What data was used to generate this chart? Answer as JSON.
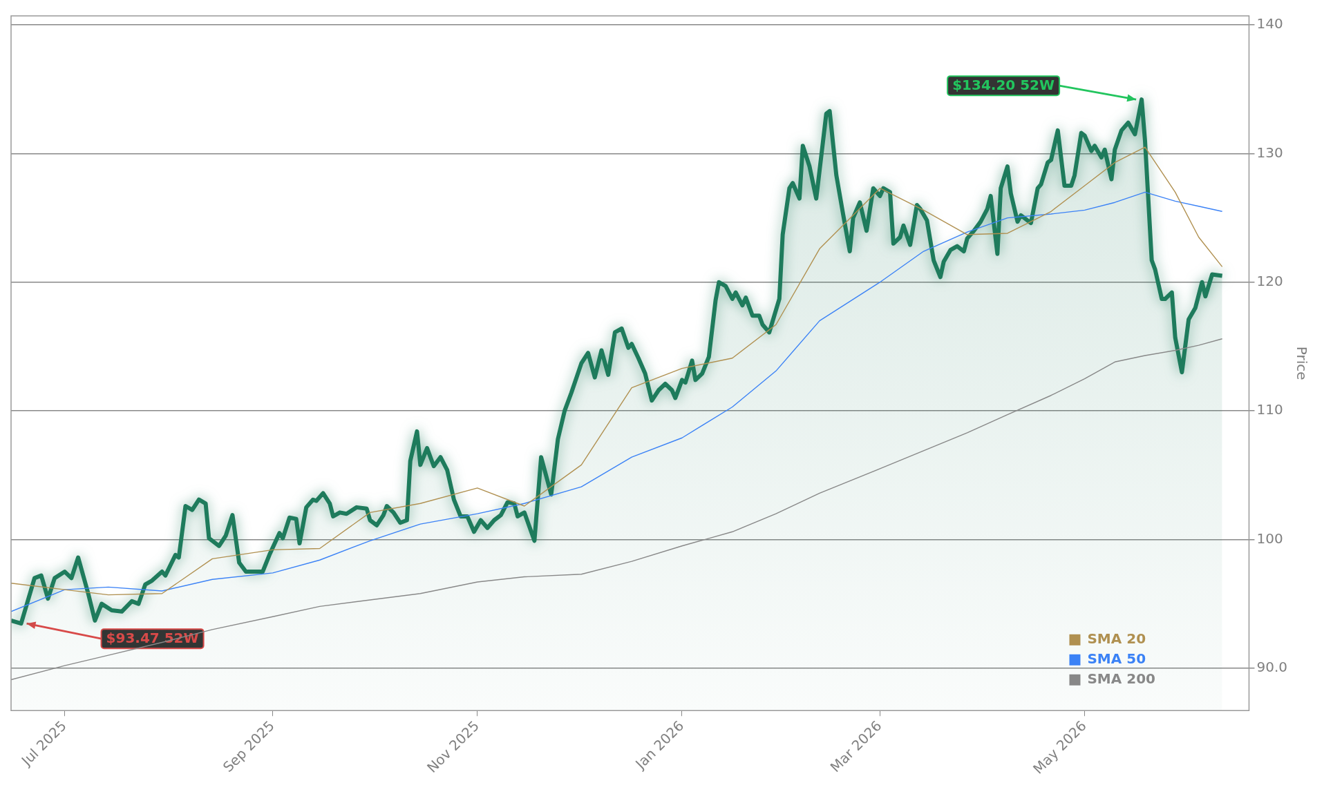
{
  "chart_data": {
    "type": "line",
    "ylabel": "Price",
    "xlim": [
      "2025-06-15",
      "2026-06-19"
    ],
    "ylim": [
      86.7,
      140.7
    ],
    "xticks": [
      {
        "value": "2025-07-01",
        "label": "Jul 2025"
      },
      {
        "value": "2025-09-01",
        "label": "Sep 2025"
      },
      {
        "value": "2025-11-01",
        "label": "Nov 2025"
      },
      {
        "value": "2026-01-01",
        "label": "Jan 2026"
      },
      {
        "value": "2026-03-01",
        "label": "Mar 2026"
      },
      {
        "value": "2026-05-01",
        "label": "May 2026"
      }
    ],
    "yticks": [
      {
        "value": 90,
        "label": "90.0"
      },
      100,
      110,
      120,
      130,
      140
    ],
    "grid": "y",
    "legend": "bottom right",
    "marker": "none",
    "line_style": "solid",
    "annotations": [
      {
        "text": "$93.47 52W",
        "x": "2025-06-18",
        "y": 93.47
      },
      {
        "text": "$134.20 52W",
        "x": "2026-05-18",
        "y": 134.2
      }
    ],
    "series": [
      {
        "type": "area",
        "color": "#1e7b5c",
        "x": [
          "2025-06-15",
          "2025-06-18",
          "2025-06-22",
          "2025-06-24",
          "2025-06-26",
          "2025-06-28",
          "2025-07-01",
          "2025-07-03",
          "2025-07-05",
          "2025-07-08",
          "2025-07-10",
          "2025-07-12",
          "2025-07-15",
          "2025-07-18",
          "2025-07-21",
          "2025-07-23",
          "2025-07-25",
          "2025-07-27",
          "2025-07-30",
          "2025-07-31",
          "2025-08-03",
          "2025-08-04",
          "2025-08-06",
          "2025-08-08",
          "2025-08-10",
          "2025-08-12",
          "2025-08-13",
          "2025-08-16",
          "2025-08-18",
          "2025-08-20",
          "2025-08-22",
          "2025-08-24",
          "2025-08-29",
          "2025-08-31",
          "2025-09-03",
          "2025-09-04",
          "2025-09-06",
          "2025-09-08",
          "2025-09-09",
          "2025-09-11",
          "2025-09-13",
          "2025-09-14",
          "2025-09-16",
          "2025-09-18",
          "2025-09-19",
          "2025-09-21",
          "2025-09-23",
          "2025-09-26",
          "2025-09-29",
          "2025-09-30",
          "2025-10-02",
          "2025-10-04",
          "2025-10-05",
          "2025-10-07",
          "2025-10-09",
          "2025-10-11",
          "2025-10-12",
          "2025-10-14",
          "2025-10-15",
          "2025-10-17",
          "2025-10-19",
          "2025-10-21",
          "2025-10-23",
          "2025-10-25",
          "2025-10-27",
          "2025-10-29",
          "2025-10-31",
          "2025-11-02",
          "2025-11-04",
          "2025-11-06",
          "2025-11-08",
          "2025-11-10",
          "2025-11-12",
          "2025-11-13",
          "2025-11-15",
          "2025-11-18",
          "2025-11-20",
          "2025-11-23",
          "2025-11-25",
          "2025-11-27",
          "2025-11-29",
          "2025-12-02",
          "2025-12-04",
          "2025-12-06",
          "2025-12-08",
          "2025-12-10",
          "2025-12-12",
          "2025-12-14",
          "2025-12-16",
          "2025-12-17",
          "2025-12-19",
          "2025-12-21",
          "2025-12-23",
          "2025-12-25",
          "2025-12-27",
          "2025-12-29",
          "2025-12-30",
          "2026-01-01",
          "2026-01-02",
          "2026-01-04",
          "2026-01-05",
          "2026-01-07",
          "2026-01-09",
          "2026-01-11",
          "2026-01-12",
          "2026-01-14",
          "2026-01-16",
          "2026-01-17",
          "2026-01-19",
          "2026-01-20",
          "2026-01-22",
          "2026-01-24",
          "2026-01-25",
          "2026-01-27",
          "2026-01-30",
          "2026-01-31",
          "2026-02-02",
          "2026-02-03",
          "2026-02-05",
          "2026-02-06",
          "2026-02-08",
          "2026-02-10",
          "2026-02-11",
          "2026-02-13",
          "2026-02-14",
          "2026-02-16",
          "2026-02-18",
          "2026-02-20",
          "2026-02-21",
          "2026-02-23",
          "2026-02-25",
          "2026-02-27",
          "2026-03-01",
          "2026-03-02",
          "2026-03-04",
          "2026-03-05",
          "2026-03-07",
          "2026-03-08",
          "2026-03-10",
          "2026-03-12",
          "2026-03-13",
          "2026-03-15",
          "2026-03-17",
          "2026-03-19",
          "2026-03-20",
          "2026-03-22",
          "2026-03-24",
          "2026-03-26",
          "2026-03-27",
          "2026-03-29",
          "2026-03-31",
          "2026-04-02",
          "2026-04-03",
          "2026-04-05",
          "2026-04-06",
          "2026-04-08",
          "2026-04-09",
          "2026-04-11",
          "2026-04-12",
          "2026-04-15",
          "2026-04-17",
          "2026-04-18",
          "2026-04-20",
          "2026-04-21",
          "2026-04-23",
          "2026-04-25",
          "2026-04-27",
          "2026-04-28",
          "2026-04-30",
          "2026-05-01",
          "2026-05-03",
          "2026-05-04",
          "2026-05-06",
          "2026-05-07",
          "2026-05-09",
          "2026-05-10",
          "2026-05-12",
          "2026-05-14",
          "2026-05-16",
          "2026-05-18",
          "2026-05-19",
          "2026-05-21",
          "2026-05-22",
          "2026-05-24",
          "2026-05-25",
          "2026-05-27",
          "2026-05-28",
          "2026-05-30",
          "2026-06-01",
          "2026-06-03",
          "2026-06-05",
          "2026-06-06",
          "2026-06-08",
          "2026-06-11"
        ],
        "values": [
          93.7,
          93.47,
          97.0,
          97.2,
          95.4,
          97.0,
          97.5,
          97.0,
          98.6,
          95.8,
          93.7,
          95.0,
          94.5,
          94.4,
          95.2,
          95.0,
          96.5,
          96.8,
          97.5,
          97.2,
          98.8,
          98.6,
          102.6,
          102.3,
          103.1,
          102.8,
          100.1,
          99.5,
          100.3,
          101.9,
          98.2,
          97.5,
          97.5,
          98.8,
          100.5,
          100.1,
          101.7,
          101.6,
          99.7,
          102.5,
          103.1,
          103.0,
          103.6,
          102.8,
          101.8,
          102.1,
          102.0,
          102.5,
          102.4,
          101.5,
          101.1,
          101.9,
          102.6,
          102.1,
          101.3,
          101.5,
          106.1,
          108.4,
          105.8,
          107.1,
          105.7,
          106.4,
          105.4,
          103.1,
          101.8,
          101.8,
          100.6,
          101.5,
          100.9,
          101.5,
          101.9,
          102.9,
          102.8,
          101.8,
          102.1,
          99.9,
          106.4,
          103.5,
          107.8,
          110.0,
          111.4,
          113.7,
          114.5,
          112.6,
          114.7,
          112.8,
          116.1,
          116.4,
          114.9,
          115.2,
          114.1,
          112.9,
          110.8,
          111.6,
          112.1,
          111.6,
          111.0,
          112.4,
          112.2,
          113.9,
          112.4,
          112.9,
          114.2,
          118.6,
          120.0,
          119.7,
          118.7,
          119.2,
          118.2,
          118.8,
          117.4,
          117.4,
          116.7,
          116.1,
          118.7,
          123.7,
          127.3,
          127.7,
          126.5,
          130.6,
          129.0,
          126.5,
          128.7,
          133.1,
          133.3,
          128.3,
          125.3,
          122.4,
          125.0,
          126.2,
          124.0,
          127.3,
          126.7,
          127.3,
          127.0,
          123.0,
          123.5,
          124.4,
          122.9,
          126.0,
          125.7,
          124.8,
          121.7,
          120.4,
          121.6,
          122.5,
          122.8,
          122.4,
          123.4,
          124.0,
          124.7,
          125.7,
          126.7,
          122.2,
          127.3,
          129.0,
          126.9,
          124.7,
          125.2,
          124.6,
          127.3,
          127.6,
          129.3,
          129.5,
          131.8,
          127.5,
          127.5,
          128.3,
          131.6,
          131.4,
          130.2,
          130.6,
          129.7,
          130.3,
          128.0,
          130.3,
          131.8,
          132.4,
          131.5,
          134.2,
          131.0,
          121.7,
          121.0,
          118.7,
          118.7,
          119.2,
          115.7,
          113.0,
          117.1,
          118.0,
          120.0,
          118.9,
          120.6,
          120.5
        ]
      },
      {
        "name": "SMA 20",
        "type": "line",
        "color": "#b09050",
        "x": [
          "2025-06-15",
          "2025-07-01",
          "2025-07-14",
          "2025-07-30",
          "2025-08-14",
          "2025-09-01",
          "2025-09-15",
          "2025-09-30",
          "2025-10-15",
          "2025-11-01",
          "2025-11-15",
          "2025-12-02",
          "2025-12-17",
          "2026-01-01",
          "2026-01-16",
          "2026-01-29",
          "2026-02-11",
          "2026-03-01",
          "2026-03-14",
          "2026-03-27",
          "2026-04-08",
          "2026-04-21",
          "2026-05-01",
          "2026-05-10",
          "2026-05-19",
          "2026-05-28",
          "2026-06-04",
          "2026-06-11"
        ],
        "values": [
          96.6,
          96.1,
          95.7,
          95.8,
          98.5,
          99.2,
          99.3,
          102.1,
          102.8,
          104.0,
          102.6,
          105.8,
          111.8,
          113.3,
          114.1,
          116.7,
          122.6,
          127.3,
          125.6,
          123.7,
          123.8,
          125.5,
          127.5,
          129.3,
          130.5,
          127.0,
          123.5,
          121.2
        ]
      },
      {
        "name": "SMA 50",
        "type": "line",
        "color": "#3b82f6",
        "x": [
          "2025-06-15",
          "2025-07-01",
          "2025-07-14",
          "2025-07-30",
          "2025-08-14",
          "2025-09-01",
          "2025-09-15",
          "2025-09-30",
          "2025-10-15",
          "2025-11-01",
          "2025-11-15",
          "2025-12-02",
          "2025-12-17",
          "2026-01-01",
          "2026-01-16",
          "2026-01-29",
          "2026-02-11",
          "2026-03-01",
          "2026-03-14",
          "2026-03-27",
          "2026-04-08",
          "2026-04-21",
          "2026-05-01",
          "2026-05-10",
          "2026-05-19",
          "2026-05-28",
          "2026-06-04",
          "2026-06-11"
        ],
        "values": [
          94.4,
          96.1,
          96.3,
          96.0,
          96.9,
          97.4,
          98.4,
          99.9,
          101.2,
          102.0,
          102.8,
          104.1,
          106.4,
          107.9,
          110.3,
          113.1,
          117.0,
          120.0,
          122.4,
          123.9,
          125.0,
          125.3,
          125.6,
          126.2,
          127.0,
          126.3,
          125.9,
          125.5
        ]
      },
      {
        "name": "SMA 200",
        "type": "line",
        "color": "#888888",
        "x": [
          "2025-06-15",
          "2025-07-01",
          "2025-07-14",
          "2025-07-30",
          "2025-08-14",
          "2025-09-01",
          "2025-09-15",
          "2025-09-30",
          "2025-10-15",
          "2025-11-01",
          "2025-11-15",
          "2025-12-02",
          "2025-12-17",
          "2026-01-01",
          "2026-01-16",
          "2026-01-29",
          "2026-02-11",
          "2026-03-01",
          "2026-03-14",
          "2026-03-27",
          "2026-04-08",
          "2026-04-21",
          "2026-05-01",
          "2026-05-10",
          "2026-05-19",
          "2026-05-28",
          "2026-06-04",
          "2026-06-11"
        ],
        "values": [
          89.1,
          90.2,
          91.0,
          92.0,
          93.0,
          94.0,
          94.8,
          95.3,
          95.8,
          96.7,
          97.1,
          97.3,
          98.3,
          99.5,
          100.6,
          102.0,
          103.6,
          105.5,
          106.9,
          108.3,
          109.7,
          111.2,
          112.5,
          113.8,
          114.3,
          114.7,
          115.1,
          115.6
        ]
      }
    ]
  }
}
